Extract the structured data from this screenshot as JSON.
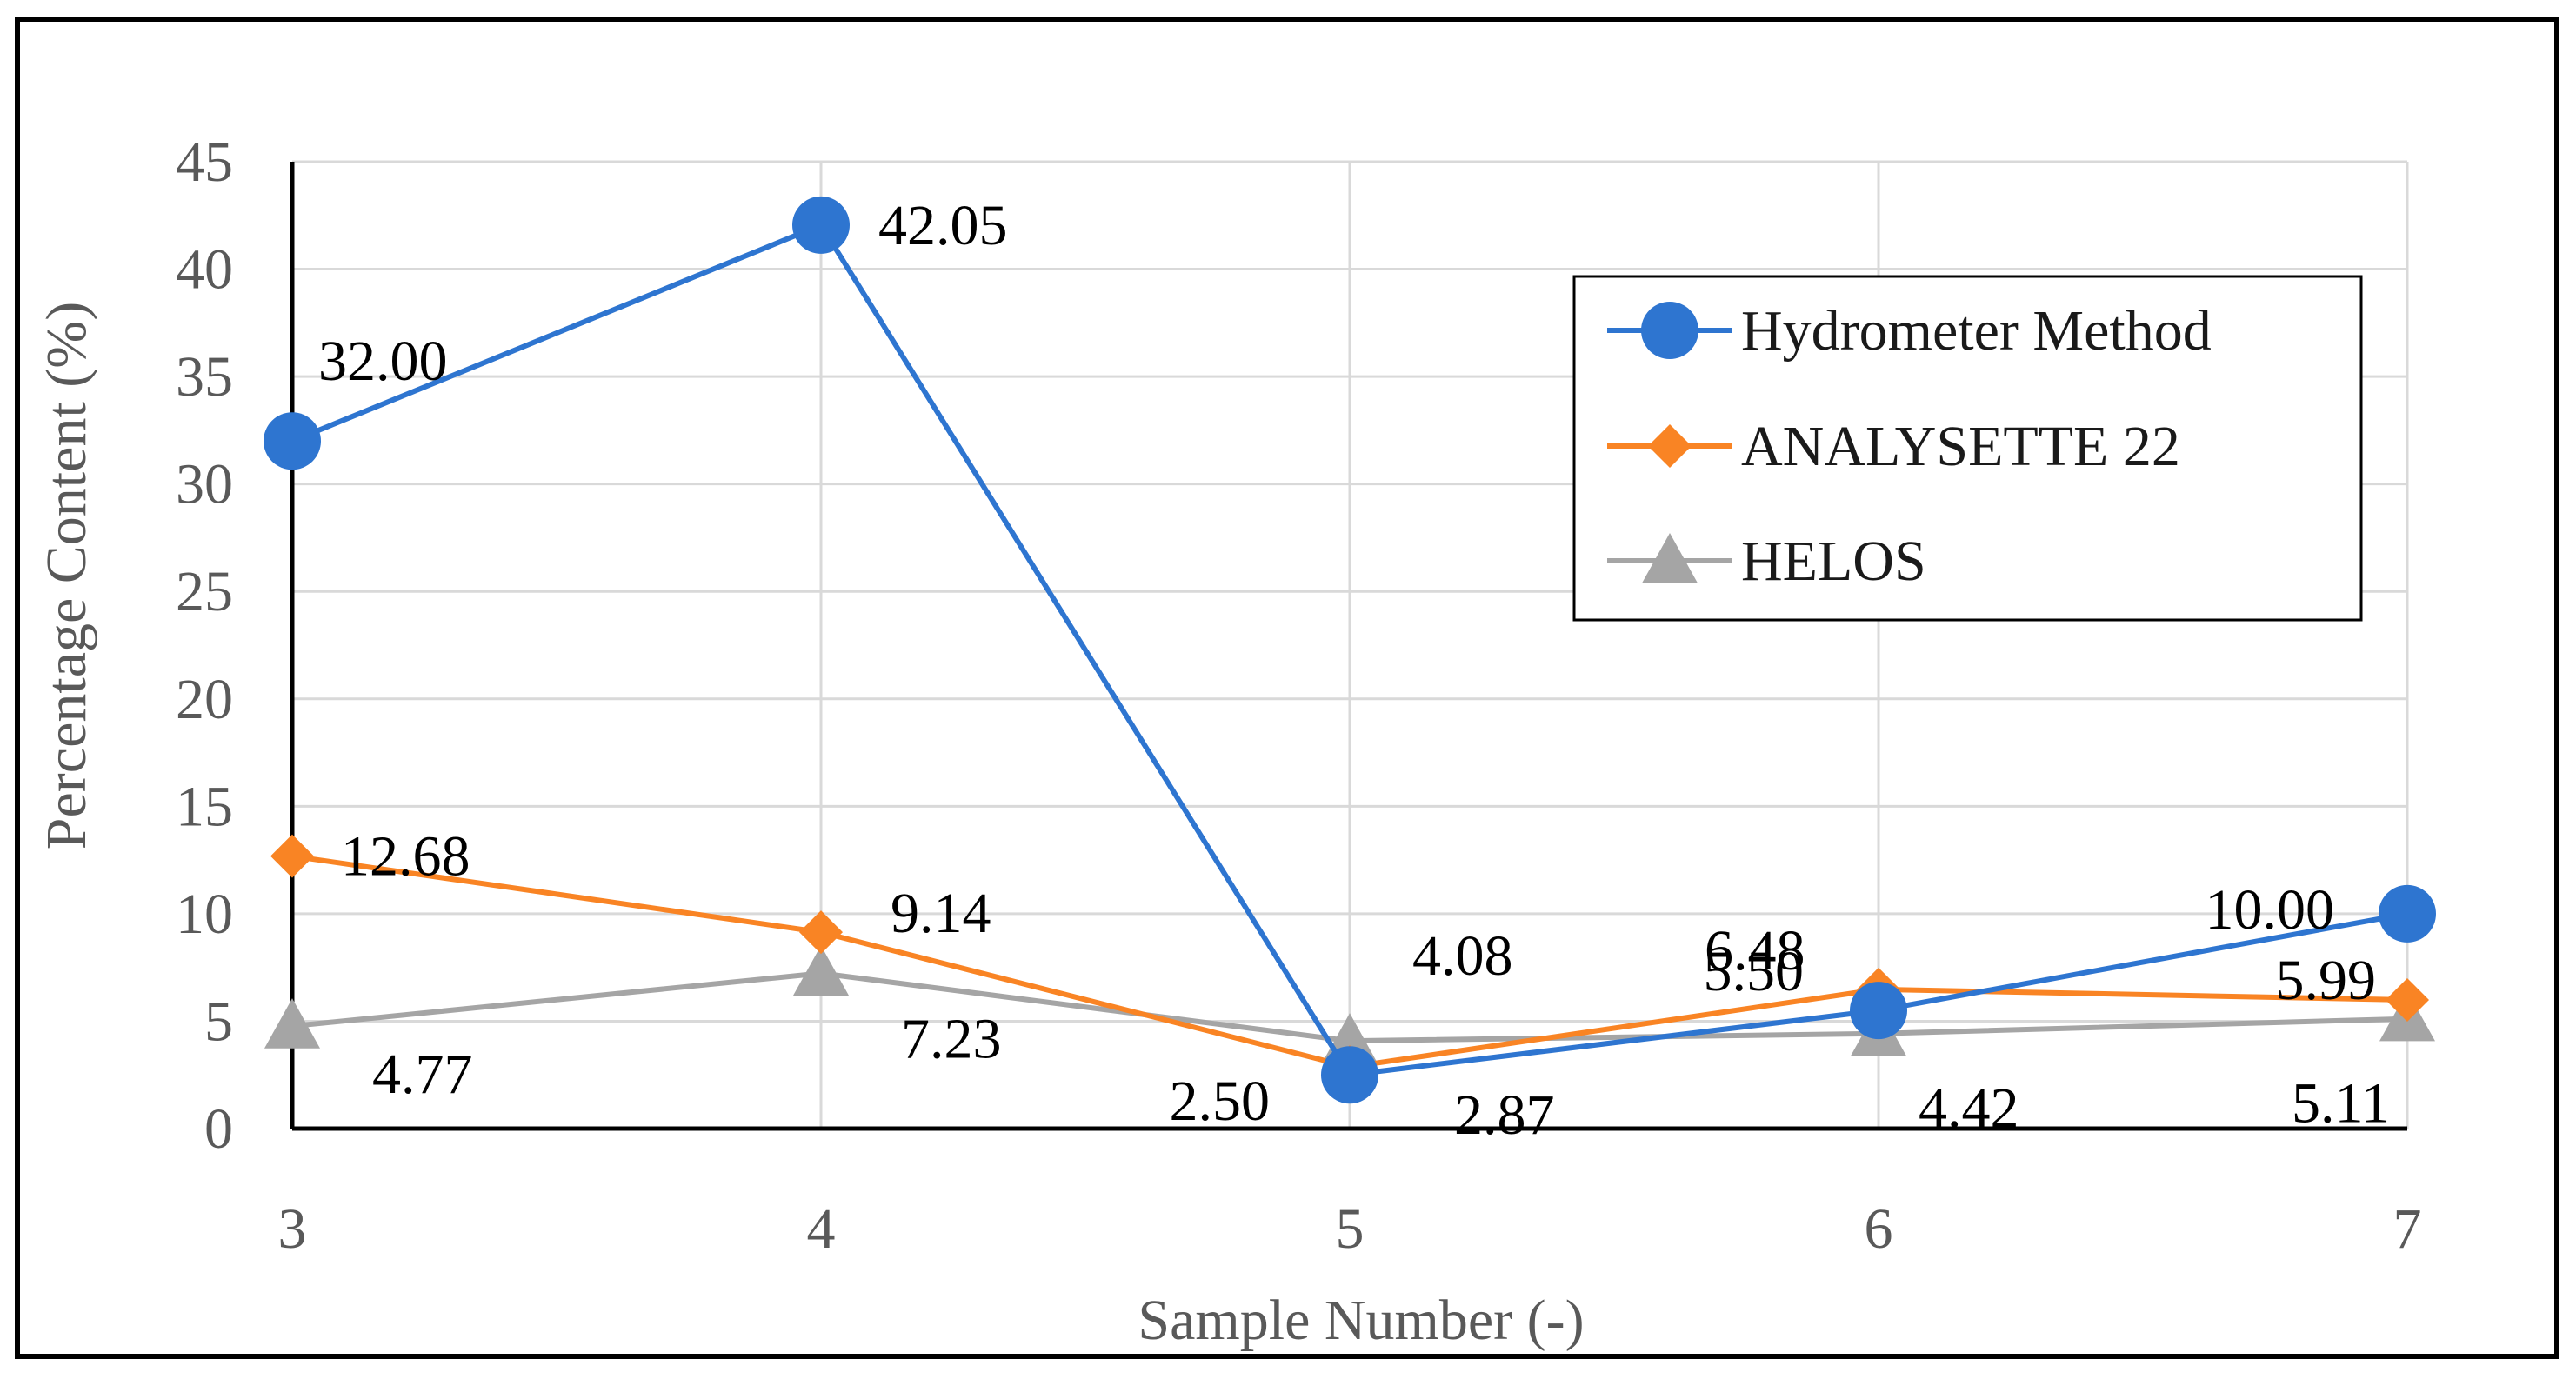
{
  "chart_data": {
    "type": "line",
    "title": "",
    "xlabel": "Sample Number (-)",
    "ylabel": "Percentage Content (%)",
    "categories": [
      "3",
      "4",
      "5",
      "6",
      "7"
    ],
    "ylim": [
      0,
      45
    ],
    "yticks": [
      "0",
      "5",
      "10",
      "15",
      "20",
      "25",
      "30",
      "35",
      "40",
      "45"
    ],
    "grid": true,
    "legend_position": "top-right",
    "series": [
      {
        "name": "Hydrometer Method",
        "color": "#2E75D0",
        "marker": "circle",
        "values": [
          32.0,
          42.05,
          2.5,
          5.5,
          10.0
        ],
        "labels": [
          "32.00",
          "42.05",
          "2.50",
          "5.50",
          "10.00"
        ]
      },
      {
        "name": "ANALYSETTE 22",
        "color": "#F98424",
        "marker": "diamond",
        "values": [
          12.68,
          9.14,
          2.87,
          6.48,
          5.99
        ],
        "labels": [
          "12.68",
          "9.14",
          "2.87",
          "6.48",
          "5.99"
        ]
      },
      {
        "name": "HELOS",
        "color": "#A5A5A5",
        "marker": "triangle",
        "values": [
          4.77,
          7.23,
          4.08,
          4.42,
          5.11
        ],
        "labels": [
          "4.77",
          "7.23",
          "4.08",
          "4.42",
          "5.11"
        ]
      }
    ]
  }
}
